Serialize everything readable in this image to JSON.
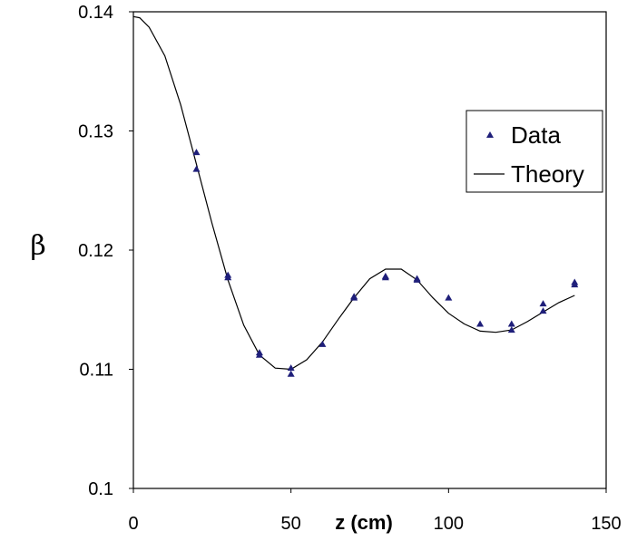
{
  "chart_data": {
    "type": "scatter",
    "title": "",
    "xlabel": "z (cm)",
    "ylabel": "β",
    "xlim": [
      0,
      150
    ],
    "ylim": [
      0.1,
      0.14
    ],
    "x_ticks": [
      "0",
      "50",
      "100",
      "150"
    ],
    "y_ticks": [
      "0.1",
      "0.11",
      "0.12",
      "0.13",
      "0.14"
    ],
    "grid": false,
    "legend_position": "right",
    "series": [
      {
        "name": "Data",
        "kind": "markers",
        "marker": "triangle",
        "color": "#1f1f7a",
        "points": [
          [
            20,
            0.1282
          ],
          [
            20,
            0.1268
          ],
          [
            30,
            0.1179
          ],
          [
            30,
            0.1177
          ],
          [
            40,
            0.1114
          ],
          [
            40,
            0.1112
          ],
          [
            50,
            0.1101
          ],
          [
            50,
            0.1096
          ],
          [
            60,
            0.1121
          ],
          [
            70,
            0.116
          ],
          [
            70,
            0.1161
          ],
          [
            80,
            0.1177
          ],
          [
            80,
            0.1178
          ],
          [
            90,
            0.1175
          ],
          [
            90,
            0.1176
          ],
          [
            100,
            0.116
          ],
          [
            110,
            0.1138
          ],
          [
            120,
            0.1138
          ],
          [
            120,
            0.1133
          ],
          [
            130,
            0.1155
          ],
          [
            130,
            0.1149
          ],
          [
            140,
            0.1171
          ],
          [
            140,
            0.1173
          ]
        ]
      },
      {
        "name": "Theory",
        "kind": "line",
        "color": "#000000",
        "points": [
          [
            0,
            0.1396
          ],
          [
            2,
            0.1395
          ],
          [
            5,
            0.1387
          ],
          [
            10,
            0.1363
          ],
          [
            15,
            0.1322
          ],
          [
            20,
            0.1272
          ],
          [
            25,
            0.1222
          ],
          [
            30,
            0.1175
          ],
          [
            35,
            0.1137
          ],
          [
            40,
            0.1112
          ],
          [
            45,
            0.1101
          ],
          [
            50,
            0.11
          ],
          [
            55,
            0.1108
          ],
          [
            60,
            0.1123
          ],
          [
            65,
            0.1142
          ],
          [
            70,
            0.116
          ],
          [
            75,
            0.1176
          ],
          [
            80,
            0.1184
          ],
          [
            85,
            0.1184
          ],
          [
            90,
            0.1175
          ],
          [
            95,
            0.116
          ],
          [
            100,
            0.1147
          ],
          [
            105,
            0.1138
          ],
          [
            110,
            0.1132
          ],
          [
            115,
            0.1131
          ],
          [
            120,
            0.1133
          ],
          [
            125,
            0.114
          ],
          [
            130,
            0.1148
          ],
          [
            135,
            0.1156
          ],
          [
            140,
            0.1162
          ]
        ]
      }
    ]
  }
}
